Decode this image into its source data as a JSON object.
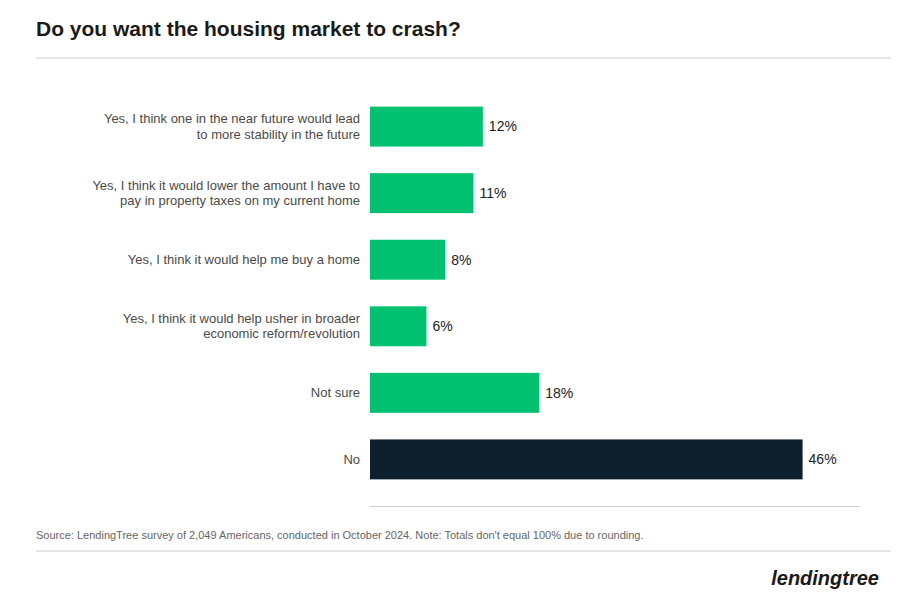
{
  "chart_data": {
    "type": "bar",
    "orientation": "horizontal",
    "title": "Do you want the housing market to crash?",
    "categories": [
      "No",
      "Not sure",
      "Yes, I think it would help usher in broader\neconomic reform/revolution",
      "Yes, I think it would help me buy a home",
      "Yes, I think it would lower the amount I have to\npay in property taxes on my current home",
      "Yes, I think one in the near future would lead\nto more stability in the future"
    ],
    "values": [
      46,
      18,
      6,
      8,
      11,
      12
    ],
    "value_labels": [
      "46%",
      "18%",
      "6%",
      "8%",
      "11%",
      "12%"
    ],
    "data_labels": true,
    "colors": [
      "#0D1F2D",
      "#00C170",
      "#00C170",
      "#00C170",
      "#00C170",
      "#00C170"
    ],
    "xlim": [
      0,
      52
    ],
    "tick_labels": "y",
    "grid": false,
    "annotations": [
      "Source: LendingTree survey of 2,049 Americans, conducted in October 2024. Note: Totals don't equal 100% due to rounding.",
      "lendingtree"
    ]
  }
}
